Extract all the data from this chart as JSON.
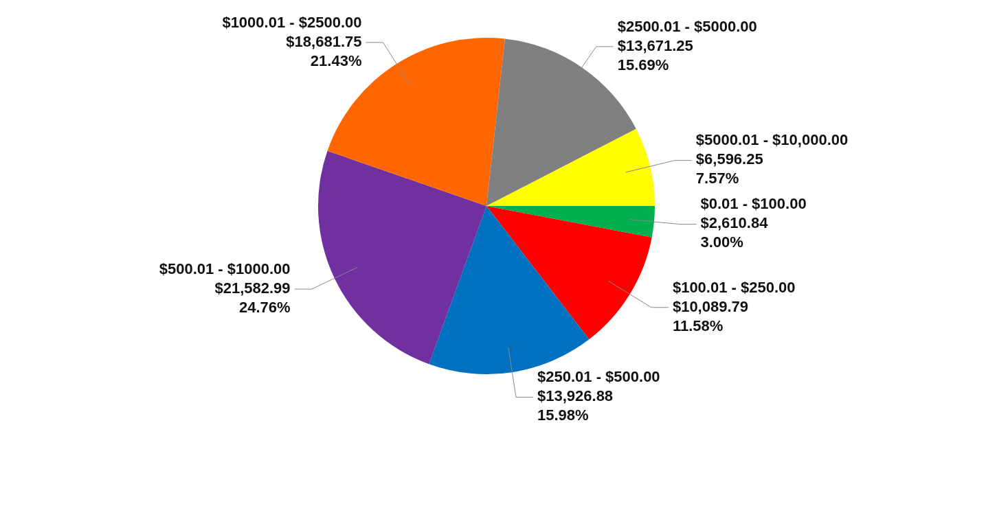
{
  "chart_data": {
    "type": "pie",
    "categories": [
      "$0.01 - $100.00",
      "$100.01 - $250.00",
      "$250.01 - $500.00",
      "$500.01 - $1000.00",
      "$1000.01 - $2500.00",
      "$2500.01 - $5000.00",
      "$5000.01 - $10,000.00"
    ],
    "values": [
      2610.84,
      10089.79,
      13926.88,
      21582.99,
      18681.75,
      13671.25,
      6596.25
    ],
    "value_labels": [
      "$2,610.84\n3.00%",
      "$10,089.79\n11.58%",
      "$13,926.88\n15.98%",
      "$21,582.99\n24.76%",
      "$18,681.75\n21.43%",
      "$13,671.25\n15.69%",
      "$6,596.25\n7.57%"
    ],
    "colors": [
      "#00b050",
      "#ff0000",
      "#0070c0",
      "#7030a0",
      "#ff6600",
      "#808080",
      "#ffff00"
    ]
  }
}
